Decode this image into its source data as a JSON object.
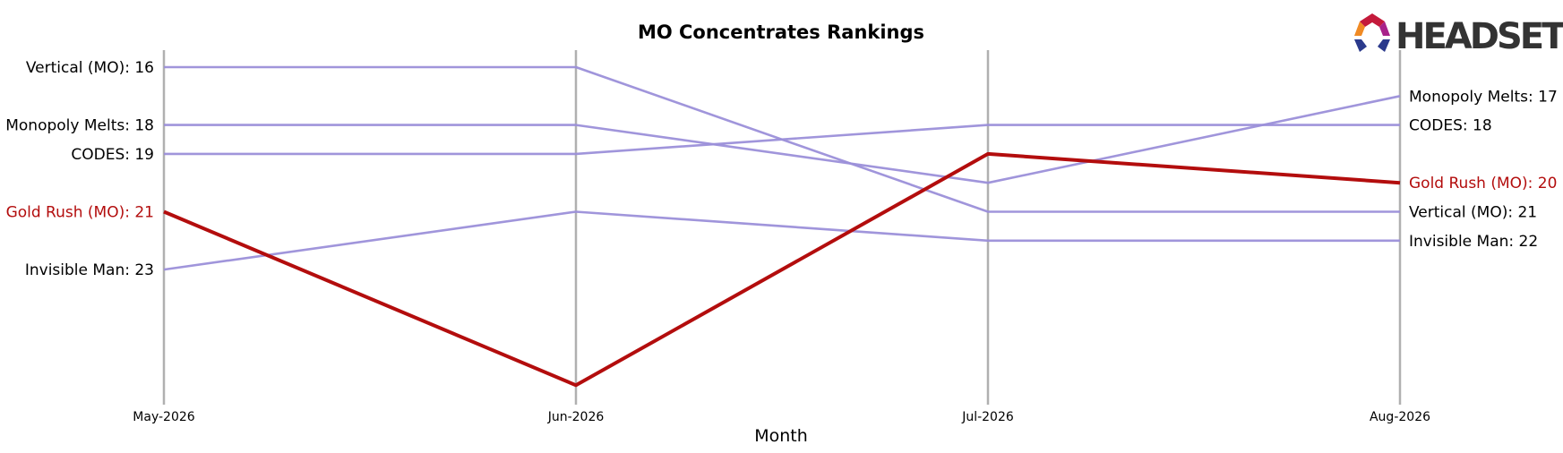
{
  "chart_data": {
    "type": "line",
    "title": "MO Concentrates Rankings",
    "xlabel": "Month",
    "ylabel": "",
    "categories": [
      "May-2026",
      "Jun-2026",
      "Jul-2026",
      "Aug-2026"
    ],
    "y_inverted": true,
    "ylim": [
      26.7,
      15.2
    ],
    "grid": "vertical lines at each month",
    "legend": "none; series labeled at left and right ends",
    "series": [
      {
        "name": "Vertical (MO)",
        "values": [
          16,
          16,
          21,
          21
        ],
        "color": "#9b8fd9",
        "highlight": false,
        "left_label": "Vertical (MO): 16",
        "right_label": "Vertical (MO): 21"
      },
      {
        "name": "Monopoly Melts",
        "values": [
          18,
          18,
          20,
          17
        ],
        "color": "#9b8fd9",
        "highlight": false,
        "left_label": "Monopoly Melts: 18",
        "right_label": "Monopoly Melts: 17"
      },
      {
        "name": "CODES",
        "values": [
          19,
          19,
          18,
          18
        ],
        "color": "#9b8fd9",
        "highlight": false,
        "left_label": "CODES: 19",
        "right_label": "CODES: 18"
      },
      {
        "name": "Invisible Man",
        "values": [
          23,
          21,
          22,
          22
        ],
        "color": "#9b8fd9",
        "highlight": false,
        "left_label": "Invisible Man: 23",
        "right_label": "Invisible Man: 22"
      },
      {
        "name": "Gold Rush (MO)",
        "values": [
          21,
          27,
          19,
          20
        ],
        "color": "#b30d0d",
        "highlight": true,
        "left_label": "Gold Rush (MO): 21",
        "right_label": "Gold Rush (MO): 20"
      }
    ]
  },
  "logo": {
    "text": "HEADSET",
    "icon": "headset-logo-icon"
  },
  "colors": {
    "grid": "#b0b0b0",
    "muted_series": "#9b8fd9",
    "highlight_series": "#b30d0d",
    "text": "#000000"
  }
}
